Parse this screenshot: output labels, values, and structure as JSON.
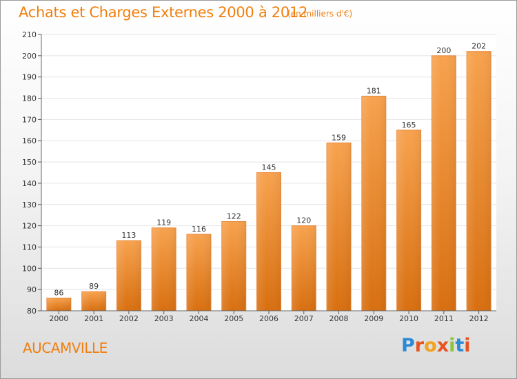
{
  "header": {
    "title": "Achats et Charges Externes 2000 à 2012",
    "subtitle": "(en milliers d'€)"
  },
  "footer": {
    "city": "AUCAMVILLE",
    "logo": {
      "text": "Proxiti",
      "colors": [
        "#2a8ad6",
        "#e8521f",
        "#f4a11d",
        "#e8521f",
        "#8bc53f",
        "#2a8ad6",
        "#e8521f"
      ]
    }
  },
  "chart_data": {
    "type": "bar",
    "title": "Achats et Charges Externes 2000 à 2012",
    "subtitle": "(en milliers d'€)",
    "categories": [
      "2000",
      "2001",
      "2002",
      "2003",
      "2004",
      "2005",
      "2006",
      "2007",
      "2008",
      "2009",
      "2010",
      "2011",
      "2012"
    ],
    "values": [
      86,
      89,
      113,
      119,
      116,
      122,
      145,
      120,
      159,
      181,
      165,
      200,
      202
    ],
    "ylim": [
      80,
      210
    ],
    "yticks": [
      80,
      90,
      100,
      110,
      120,
      130,
      140,
      150,
      160,
      170,
      180,
      190,
      200,
      210
    ],
    "grid": true,
    "colors": {
      "bar_light": "#f7a24e",
      "bar_dark": "#d86f10",
      "label": "#333333",
      "grid": "#e4e4e4"
    }
  }
}
